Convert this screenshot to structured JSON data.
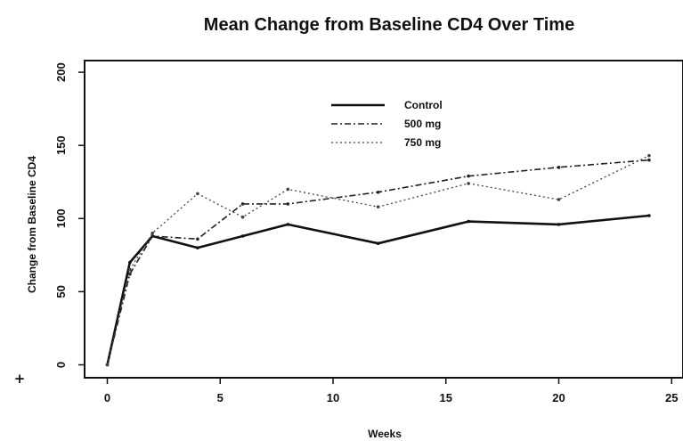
{
  "chart_data": {
    "type": "line",
    "title": "Mean Change from Baseline CD4 Over Time",
    "xlabel": "Weeks",
    "ylabel": "Change from Baseline CD4",
    "xlim": [
      -1,
      25.5
    ],
    "ylim": [
      -5,
      205
    ],
    "x_ticks": [
      0,
      5,
      10,
      15,
      20,
      25
    ],
    "y_ticks": [
      0,
      50,
      100,
      150,
      200
    ],
    "x_tick_labels": [
      "0",
      "5",
      "10",
      "15",
      "20",
      "25"
    ],
    "y_tick_labels": [
      "0",
      "50",
      "100",
      "150",
      "200"
    ],
    "legend_position": "top-center",
    "grid": false,
    "series": [
      {
        "name": "Control",
        "style": "solid",
        "color": "#111111",
        "x": [
          0,
          1,
          2,
          4,
          6,
          8,
          12,
          16,
          20,
          24
        ],
        "values": [
          0,
          70,
          88,
          80,
          88,
          96,
          83,
          98,
          96,
          102
        ]
      },
      {
        "name": "500 mg",
        "style": "dashdot",
        "color": "#222222",
        "x": [
          0,
          1,
          2,
          4,
          6,
          8,
          12,
          16,
          20,
          24
        ],
        "values": [
          0,
          62,
          88,
          86,
          110,
          110,
          118,
          129,
          135,
          140
        ]
      },
      {
        "name": "750 mg",
        "style": "dotted",
        "color": "#444444",
        "x": [
          0,
          1,
          2,
          4,
          6,
          8,
          12,
          16,
          20,
          24
        ],
        "values": [
          0,
          65,
          90,
          117,
          101,
          120,
          108,
          124,
          113,
          143
        ]
      }
    ]
  },
  "stray_mark": "+"
}
